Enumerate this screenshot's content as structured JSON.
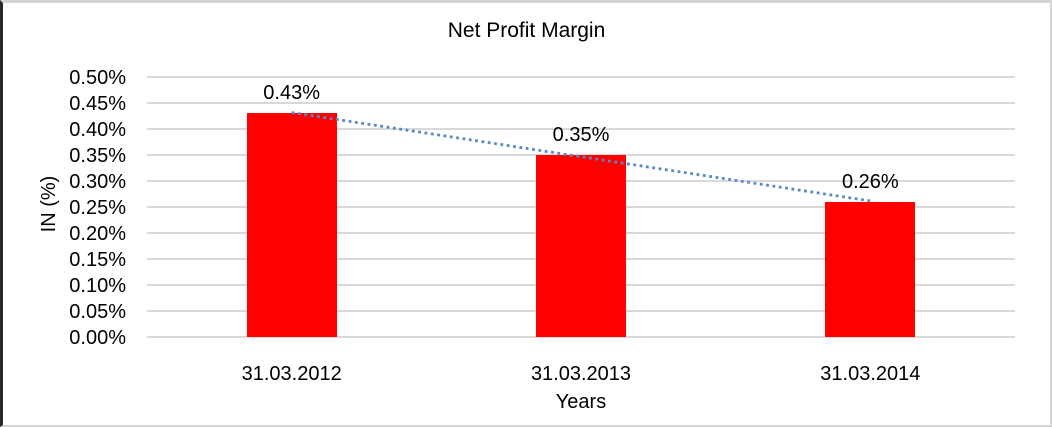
{
  "chart_data": {
    "type": "bar",
    "title": "Net Profit Margin",
    "xlabel": "Years",
    "ylabel": "IN (%)",
    "categories": [
      "31.03.2012",
      "31.03.2013",
      "31.03.2014"
    ],
    "values": [
      0.43,
      0.35,
      0.26
    ],
    "value_labels": [
      "0.43%",
      "0.35%",
      "0.26%"
    ],
    "ylim": [
      0,
      0.5
    ],
    "ytick_step": 0.05,
    "ytick_labels": [
      "0.00%",
      "0.05%",
      "0.10%",
      "0.15%",
      "0.20%",
      "0.25%",
      "0.30%",
      "0.35%",
      "0.40%",
      "0.45%",
      "0.50%"
    ],
    "grid": true,
    "legend": "none",
    "bar_color": "#FF0000",
    "gridline_color": "#D9D9D9",
    "text_color": "#000000",
    "trendline": {
      "kind": "linear",
      "style": "dotted",
      "color": "#5589C8"
    }
  }
}
